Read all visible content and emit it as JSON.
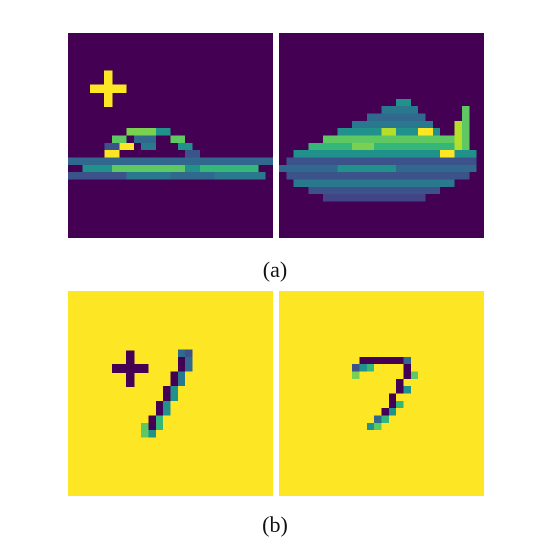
{
  "captions": {
    "a": "(a)",
    "b": "(b)"
  },
  "colors": {
    "viridis_dark": "#440154",
    "viridis_yellow": "#fde725",
    "viridis_teal": "#21918c",
    "viridis_blue": "#3b528b",
    "viridis_green": "#5ec962",
    "marker_yellow": "#fde725",
    "marker_dark": "#440154"
  },
  "panels": {
    "a": {
      "left_image": "sandal-heatmap",
      "right_image": "sneaker-heatmap",
      "marker": "plus-sign",
      "background": "dark"
    },
    "b": {
      "left_image": "digit-one-heatmap",
      "right_image": "digit-seven-heatmap",
      "marker": "plus-sign",
      "background": "yellow"
    }
  }
}
